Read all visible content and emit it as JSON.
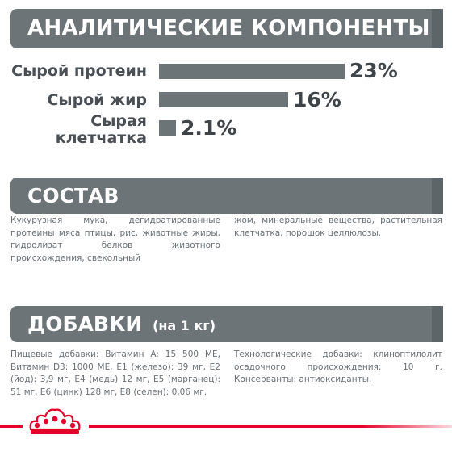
{
  "analytics": {
    "title": "АНАЛИТИЧЕСКИЕ КОМПОНЕНТЫ",
    "items": [
      {
        "label": "Сырой протеин",
        "value": "23%",
        "percent": 23
      },
      {
        "label": "Сырой жир",
        "value": "16%",
        "percent": 16
      },
      {
        "label": "Сырая клетчатка",
        "value": "2.1%",
        "percent": 2.1
      }
    ]
  },
  "composition": {
    "title": "СОСТАВ",
    "text_left": "Кукурузная мука, дегидратированные протеины мяса птицы, рис, животные жиры, гидролизат белков животного происхождения, свекольный",
    "text_right": "жом, минеральные вещества, растительная клетчатка, порошок целлюлозы."
  },
  "additives": {
    "title": "ДОБАВКИ",
    "subtitle": "(на 1 кг)",
    "text_left": "Пищевые добавки: Витамин A: 15 500 МЕ, Витамин D3: 1000 МЕ, E1 (железо): 39 мг, E2 (йод): 3,9 мг, E4 (медь) 12 мг, E5 (марганец): 51 мг, E6 (цинк) 128 мг, E8 (селен): 0,06 мг.",
    "text_right": "Технологические добавки: клиноптилолит осадочного происхождения: 10 г. Консерванты: антиоксиданты."
  },
  "colors": {
    "banner": "#6d7478",
    "bar": "#6d7478",
    "brand_red": "#e4002b"
  },
  "icons": {
    "footer": "royal-canin-crown-logo"
  }
}
